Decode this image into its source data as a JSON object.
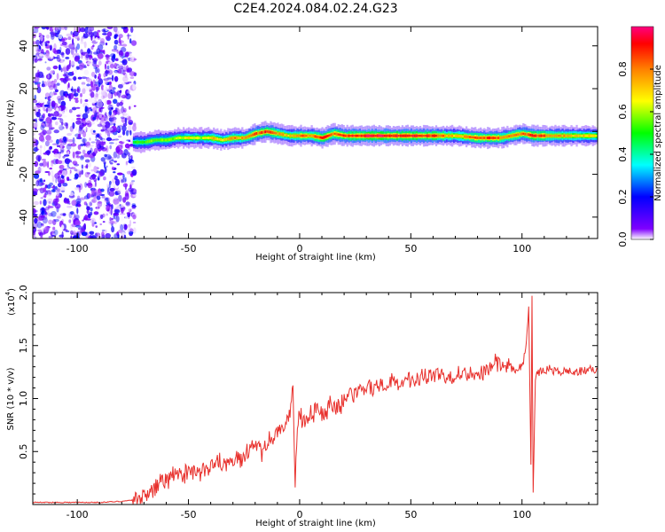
{
  "title": "C2E4.2024.084.02.24.G23",
  "chart_data": [
    {
      "type": "heatmap",
      "xlabel": "Height of straight line (km)",
      "ylabel": "Frequency (Hz)",
      "xlim": [
        -120,
        134
      ],
      "ylim": [
        -50,
        49
      ],
      "xticks": [
        -100,
        -50,
        0,
        50,
        100
      ],
      "yticks": [
        -40,
        -20,
        0,
        20,
        40
      ],
      "colorbar": {
        "label": "Normalized spectral amplitude",
        "range": [
          0,
          1
        ],
        "ticks": [
          "0.0",
          "0.2",
          "0.4",
          "0.6",
          "0.8"
        ],
        "colors": [
          "#ffffff",
          "#7f00ff",
          "#0000ff",
          "#00ffff",
          "#00ff00",
          "#ffff00",
          "#ff8000",
          "#ff0000",
          "#ff0080"
        ]
      },
      "noise_region_x": [
        -120,
        -75
      ],
      "ridge": {
        "x": [
          -75,
          -70,
          -65,
          -60,
          -55,
          -50,
          -45,
          -40,
          -35,
          -30,
          -25,
          -20,
          -15,
          -10,
          -5,
          0,
          5,
          10,
          15,
          20,
          30,
          40,
          50,
          60,
          70,
          80,
          90,
          95,
          100,
          105,
          110,
          120,
          134
        ],
        "frequency": [
          -5,
          -5,
          -4,
          -4,
          -3,
          -3,
          -3,
          -3,
          -4,
          -3,
          -3,
          -1,
          0,
          -1,
          -2,
          -2,
          -2,
          -3,
          -1,
          -2,
          -2,
          -2,
          -2,
          -2,
          -2,
          -3,
          -3,
          -2,
          -1,
          -2,
          -2,
          -2,
          -2
        ],
        "amplitude": [
          0.5,
          0.55,
          0.6,
          0.55,
          0.6,
          0.7,
          0.6,
          0.75,
          0.7,
          0.8,
          0.75,
          0.85,
          0.9,
          0.8,
          0.7,
          0.85,
          0.8,
          0.9,
          0.85,
          0.9,
          0.95,
          0.95,
          0.95,
          0.9,
          0.7,
          0.9,
          0.85,
          0.8,
          0.85,
          0.9,
          0.85,
          0.75,
          0.7
        ]
      }
    },
    {
      "type": "line",
      "xlabel": "Height of straight line (km)",
      "ylabel": "SNR (10 * v/v)",
      "yscale_label": "(x10",
      "yscale_exponent": "4",
      "xlim": [
        -120,
        134
      ],
      "ylim": [
        0,
        2.0
      ],
      "xticks": [
        -100,
        -50,
        0,
        50,
        100
      ],
      "yticks": [
        "0.5",
        "1.0",
        "1.5",
        "2.0"
      ],
      "series": [
        {
          "color": "#e8302c",
          "x": [
            -120,
            -110,
            -100,
            -90,
            -80,
            -76,
            -72,
            -68,
            -65,
            -62,
            -59,
            -56,
            -53,
            -50,
            -47,
            -44,
            -41,
            -38,
            -35,
            -32,
            -29,
            -26,
            -23,
            -20,
            -17,
            -14,
            -11,
            -8,
            -5,
            -3,
            -2,
            -1,
            0,
            2,
            5,
            8,
            11,
            14,
            17,
            20,
            25,
            30,
            35,
            40,
            45,
            50,
            55,
            60,
            65,
            70,
            75,
            80,
            85,
            88,
            91,
            94,
            97,
            100,
            102,
            103,
            104,
            104.5,
            105,
            106,
            108,
            112,
            116,
            120,
            125,
            130,
            134
          ],
          "y": [
            0.02,
            0.02,
            0.02,
            0.02,
            0.03,
            0.04,
            0.06,
            0.1,
            0.15,
            0.25,
            0.2,
            0.3,
            0.25,
            0.35,
            0.3,
            0.32,
            0.3,
            0.45,
            0.4,
            0.38,
            0.45,
            0.42,
            0.5,
            0.55,
            0.5,
            0.6,
            0.65,
            0.7,
            0.8,
            1.1,
            0.2,
            0.75,
            0.85,
            0.8,
            0.85,
            0.9,
            0.85,
            0.95,
            0.9,
            1.0,
            1.05,
            1.08,
            1.12,
            1.15,
            1.15,
            1.18,
            1.2,
            1.22,
            1.22,
            1.23,
            1.24,
            1.25,
            1.27,
            1.35,
            1.3,
            1.3,
            1.28,
            1.3,
            1.5,
            1.9,
            0.4,
            2.0,
            0.1,
            1.2,
            1.25,
            1.28,
            1.25,
            1.26,
            1.25,
            1.27,
            1.28
          ]
        }
      ]
    }
  ]
}
